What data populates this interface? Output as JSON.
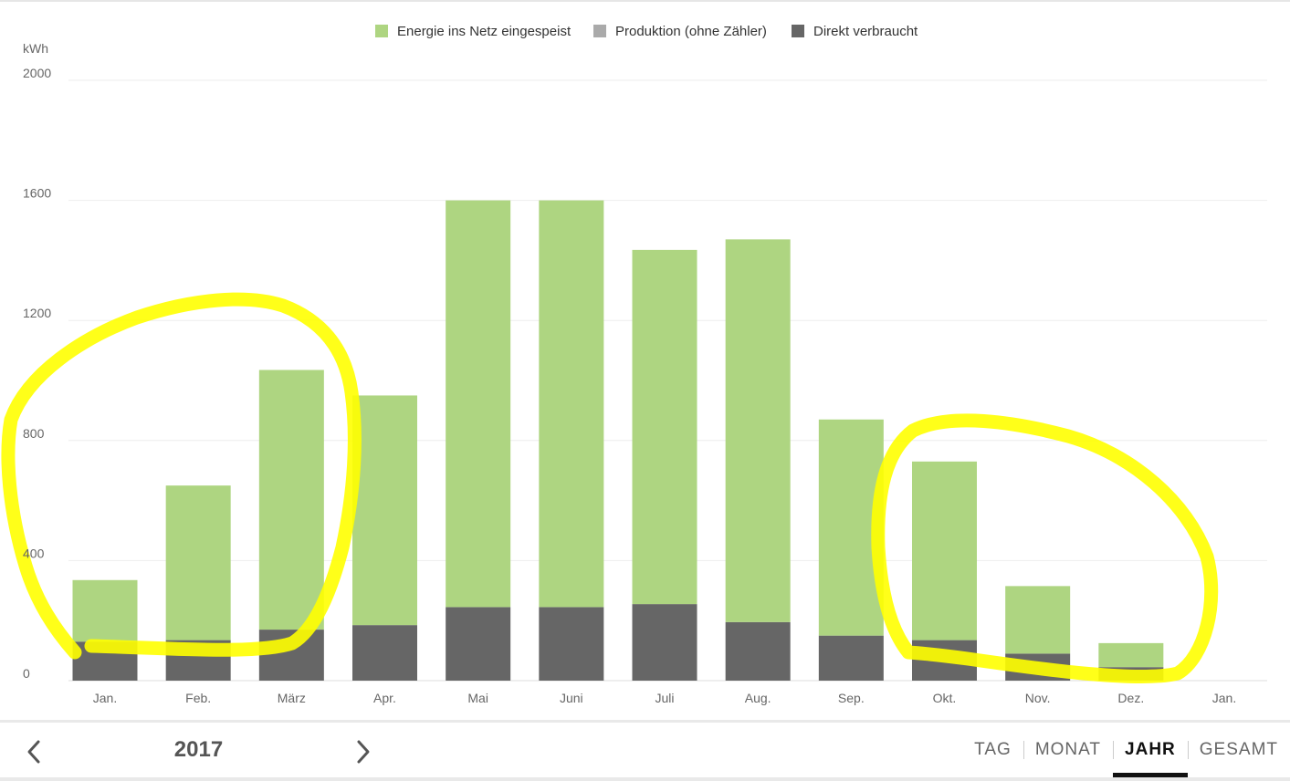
{
  "chart_data": {
    "type": "bar",
    "stacked": true,
    "ylabel": "kWh",
    "ylim": [
      0,
      2000
    ],
    "yticks": [
      0,
      400,
      800,
      1200,
      1600,
      2000
    ],
    "grid": true,
    "legend_position": "top-center",
    "categories": [
      "Jan.",
      "Feb.",
      "März",
      "Apr.",
      "Mai",
      "Juni",
      "Juli",
      "Aug.",
      "Sep.",
      "Okt.",
      "Nov.",
      "Dez.",
      "Jan."
    ],
    "series": [
      {
        "name": "Direkt verbraucht",
        "color": "#666666",
        "values": [
          130,
          135,
          170,
          185,
          245,
          245,
          255,
          195,
          150,
          135,
          90,
          45,
          null
        ]
      },
      {
        "name": "Energie ins Netz eingespeist",
        "color": "#aed581",
        "values": [
          205,
          515,
          865,
          765,
          1355,
          1355,
          1180,
          1275,
          720,
          595,
          225,
          80,
          null
        ]
      }
    ],
    "legend": [
      {
        "name": "Energie ins Netz eingespeist",
        "color": "#aed581"
      },
      {
        "name": "Produktion (ohne Zähler)",
        "color": "#aaaaaa"
      },
      {
        "name": "Direkt verbraucht",
        "color": "#666666"
      }
    ],
    "annotations": [
      {
        "type": "freehand-loop",
        "color": "#ffff00",
        "months": [
          "Jan.",
          "Feb.",
          "März"
        ]
      },
      {
        "type": "freehand-loop",
        "color": "#ffff00",
        "months": [
          "Okt.",
          "Nov.",
          "Dez."
        ]
      }
    ]
  },
  "footer": {
    "year": "2017",
    "tabs": [
      {
        "label": "TAG",
        "active": false
      },
      {
        "label": "MONAT",
        "active": false
      },
      {
        "label": "JAHR",
        "active": true
      },
      {
        "label": "GESAMT",
        "active": false
      }
    ]
  },
  "icons": {
    "prev": "chevron-left-icon",
    "next": "chevron-right-icon"
  }
}
